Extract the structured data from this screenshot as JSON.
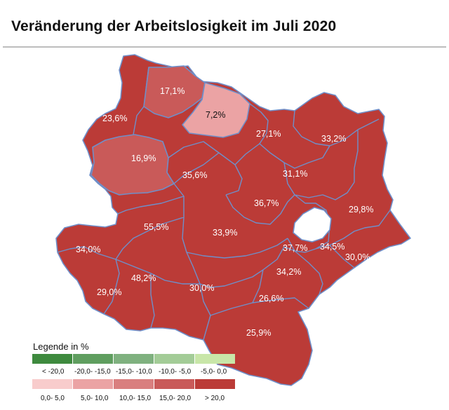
{
  "title": "Veränderung der Arbeitslosigkeit im Juli 2020",
  "colors": {
    "dark_red": "#bb3b37",
    "mid_red": "#c95a59",
    "light_pink": "#eba3a4",
    "outline": "#6f8fc9"
  },
  "map": {
    "labels": [
      {
        "text": "17,1%"
      },
      {
        "text": "7,2%"
      },
      {
        "text": "23,6%"
      },
      {
        "text": "27,1%"
      },
      {
        "text": "33,2%"
      },
      {
        "text": "16,9%"
      },
      {
        "text": "35,6%"
      },
      {
        "text": "31,1%"
      },
      {
        "text": "36,7%"
      },
      {
        "text": "29,8%"
      },
      {
        "text": "55,5%"
      },
      {
        "text": "33,9%"
      },
      {
        "text": "34,0%"
      },
      {
        "text": "37,7%"
      },
      {
        "text": "34,5%"
      },
      {
        "text": "30,0%"
      },
      {
        "text": "48,2%"
      },
      {
        "text": "34,2%"
      },
      {
        "text": "29,0%"
      },
      {
        "text": "30,0%"
      },
      {
        "text": "26,6%"
      },
      {
        "text": "25,9%"
      }
    ]
  },
  "legend": {
    "title": "Legende in %",
    "negative": [
      {
        "label": "< -20,0",
        "color": "#3e8a3e"
      },
      {
        "label": "-20,0- -15,0",
        "color": "#5f9e5f"
      },
      {
        "label": "-15,0- -10,0",
        "color": "#7fb17f"
      },
      {
        "label": "-10,0- -5,0",
        "color": "#a3cc97"
      },
      {
        "label": "-5,0- 0,0",
        "color": "#c8e6a8"
      }
    ],
    "positive": [
      {
        "label": "0,0- 5,0",
        "color": "#f8cccc"
      },
      {
        "label": "5,0- 10,0",
        "color": "#eba3a4"
      },
      {
        "label": "10,0- 15,0",
        "color": "#d97f7f"
      },
      {
        "label": "15,0- 20,0",
        "color": "#c95a59"
      },
      {
        "label": "> 20,0",
        "color": "#bb3b37"
      }
    ]
  }
}
